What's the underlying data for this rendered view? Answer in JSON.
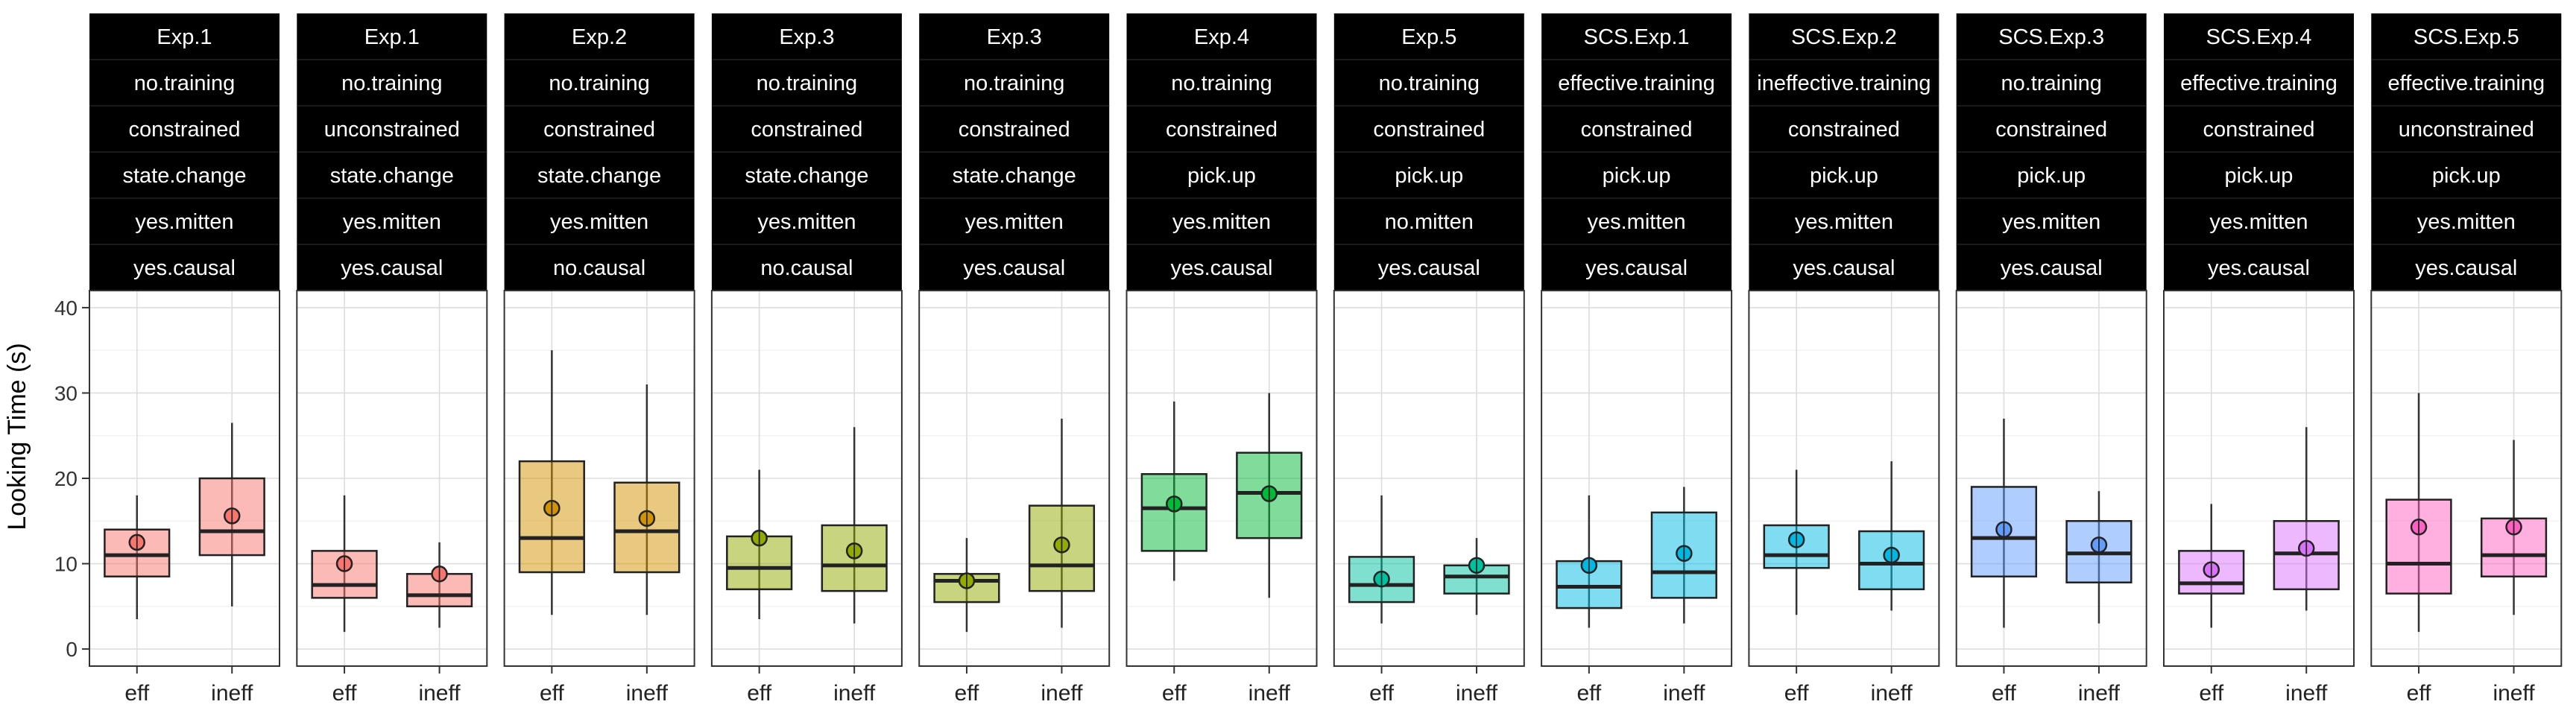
{
  "chart_data": {
    "type": "box",
    "title": "",
    "ylabel": "Looking Time (s)",
    "xlabel": "",
    "ylim": [
      -2,
      42
    ],
    "y_ticks": [
      0,
      10,
      20,
      30,
      40
    ],
    "x_categories": [
      "eff",
      "ineff"
    ],
    "grid": true,
    "panels": [
      {
        "strip": [
          "Exp.1",
          "no.training",
          "constrained",
          "state.change",
          "yes.mitten",
          "yes.causal"
        ],
        "color": "#F8766D",
        "eff": {
          "q1": 8.5,
          "median": 11,
          "q3": 14,
          "whisker_low": 3.5,
          "whisker_high": 18,
          "mean": 12.5
        },
        "ineff": {
          "q1": 11,
          "median": 13.8,
          "q3": 20,
          "whisker_low": 5,
          "whisker_high": 26.5,
          "mean": 15.6
        }
      },
      {
        "strip": [
          "Exp.1",
          "no.training",
          "unconstrained",
          "state.change",
          "yes.mitten",
          "yes.causal"
        ],
        "color": "#F8766D",
        "eff": {
          "q1": 6,
          "median": 7.5,
          "q3": 11.5,
          "whisker_low": 2,
          "whisker_high": 18,
          "mean": 10
        },
        "ineff": {
          "q1": 5,
          "median": 6.3,
          "q3": 8.8,
          "whisker_low": 2.5,
          "whisker_high": 12.5,
          "mean": 8.8
        }
      },
      {
        "strip": [
          "Exp.2",
          "no.training",
          "constrained",
          "state.change",
          "yes.mitten",
          "no.causal"
        ],
        "color": "#D39200",
        "eff": {
          "q1": 9,
          "median": 13,
          "q3": 22,
          "whisker_low": 4,
          "whisker_high": 35,
          "mean": 16.5
        },
        "ineff": {
          "q1": 9,
          "median": 13.8,
          "q3": 19.5,
          "whisker_low": 4,
          "whisker_high": 31,
          "mean": 15.3
        }
      },
      {
        "strip": [
          "Exp.3",
          "no.training",
          "constrained",
          "state.change",
          "yes.mitten",
          "no.causal"
        ],
        "color": "#93AA00",
        "eff": {
          "q1": 7,
          "median": 9.5,
          "q3": 13.2,
          "whisker_low": 3.5,
          "whisker_high": 21,
          "mean": 13
        },
        "ineff": {
          "q1": 6.8,
          "median": 9.8,
          "q3": 14.5,
          "whisker_low": 3,
          "whisker_high": 26,
          "mean": 11.5
        }
      },
      {
        "strip": [
          "Exp.3",
          "no.training",
          "constrained",
          "state.change",
          "yes.mitten",
          "yes.causal"
        ],
        "color": "#93AA00",
        "eff": {
          "q1": 5.5,
          "median": 8,
          "q3": 8.8,
          "whisker_low": 2,
          "whisker_high": 13,
          "mean": 8
        },
        "ineff": {
          "q1": 6.8,
          "median": 9.8,
          "q3": 16.8,
          "whisker_low": 2.5,
          "whisker_high": 27,
          "mean": 12.2
        }
      },
      {
        "strip": [
          "Exp.4",
          "no.training",
          "constrained",
          "pick.up",
          "yes.mitten",
          "yes.causal"
        ],
        "color": "#00BA38",
        "eff": {
          "q1": 11.5,
          "median": 16.5,
          "q3": 20.5,
          "whisker_low": 8,
          "whisker_high": 29,
          "mean": 17
        },
        "ineff": {
          "q1": 13,
          "median": 18.3,
          "q3": 23,
          "whisker_low": 6,
          "whisker_high": 30,
          "mean": 18.2
        }
      },
      {
        "strip": [
          "Exp.5",
          "no.training",
          "constrained",
          "pick.up",
          "no.mitten",
          "yes.causal"
        ],
        "color": "#00C19F",
        "eff": {
          "q1": 5.5,
          "median": 7.5,
          "q3": 10.8,
          "whisker_low": 3,
          "whisker_high": 18,
          "mean": 8.2
        },
        "ineff": {
          "q1": 6.5,
          "median": 8.5,
          "q3": 9.8,
          "whisker_low": 4,
          "whisker_high": 13,
          "mean": 9.8
        }
      },
      {
        "strip": [
          "SCS.Exp.1",
          "effective.training",
          "constrained",
          "pick.up",
          "yes.mitten",
          "yes.causal"
        ],
        "color": "#00B9E3",
        "eff": {
          "q1": 4.8,
          "median": 7.3,
          "q3": 10.3,
          "whisker_low": 2.5,
          "whisker_high": 18,
          "mean": 9.8
        },
        "ineff": {
          "q1": 6,
          "median": 9,
          "q3": 16,
          "whisker_low": 3,
          "whisker_high": 19,
          "mean": 11.2
        }
      },
      {
        "strip": [
          "SCS.Exp.2",
          "ineffective.training",
          "constrained",
          "pick.up",
          "yes.mitten",
          "yes.causal"
        ],
        "color": "#00B9E3",
        "eff": {
          "q1": 9.5,
          "median": 11,
          "q3": 14.5,
          "whisker_low": 4,
          "whisker_high": 21,
          "mean": 12.8
        },
        "ineff": {
          "q1": 7,
          "median": 10,
          "q3": 13.8,
          "whisker_low": 4.5,
          "whisker_high": 22,
          "mean": 11
        }
      },
      {
        "strip": [
          "SCS.Exp.3",
          "no.training",
          "constrained",
          "pick.up",
          "yes.mitten",
          "yes.causal"
        ],
        "color": "#619CFF",
        "eff": {
          "q1": 8.5,
          "median": 13,
          "q3": 19,
          "whisker_low": 2.5,
          "whisker_high": 27,
          "mean": 14
        },
        "ineff": {
          "q1": 7.8,
          "median": 11.2,
          "q3": 15,
          "whisker_low": 3,
          "whisker_high": 18.5,
          "mean": 12.2
        }
      },
      {
        "strip": [
          "SCS.Exp.4",
          "effective.training",
          "constrained",
          "pick.up",
          "yes.mitten",
          "yes.causal"
        ],
        "color": "#DB72FB",
        "eff": {
          "q1": 6.5,
          "median": 7.7,
          "q3": 11.5,
          "whisker_low": 2.5,
          "whisker_high": 17,
          "mean": 9.3
        },
        "ineff": {
          "q1": 7,
          "median": 11.2,
          "q3": 15,
          "whisker_low": 4.5,
          "whisker_high": 26,
          "mean": 11.8
        }
      },
      {
        "strip": [
          "SCS.Exp.5",
          "effective.training",
          "unconstrained",
          "pick.up",
          "yes.mitten",
          "yes.causal"
        ],
        "color": "#FF61C3",
        "eff": {
          "q1": 6.5,
          "median": 10,
          "q3": 17.5,
          "whisker_low": 2,
          "whisker_high": 30,
          "mean": 14.3
        },
        "ineff": {
          "q1": 8.5,
          "median": 11,
          "q3": 15.3,
          "whisker_low": 4,
          "whisker_high": 24.5,
          "mean": 14.3
        }
      }
    ]
  }
}
